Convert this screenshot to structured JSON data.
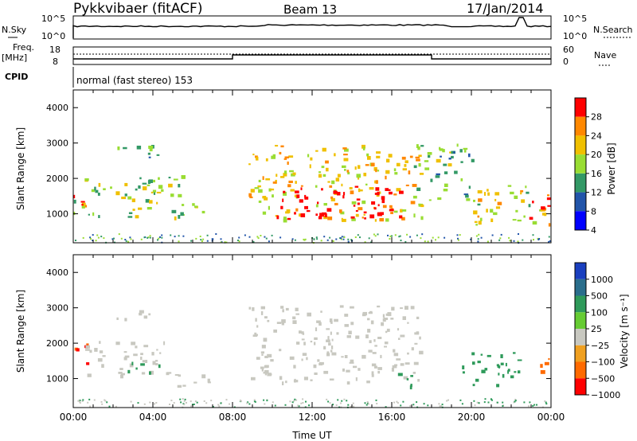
{
  "header": {
    "radar_title": "Pykkvibaer (fitACF)",
    "beam": "Beam 13",
    "date": "17/Jan/2014"
  },
  "top_panels": {
    "nsky_label": "N.Sky",
    "nsky_ticks": [
      "10^5",
      "10^0"
    ],
    "nsearch_label": "N.Search",
    "freq_label": "Freq.",
    "freq_unit": "[MHz]",
    "freq_ticks": [
      "18",
      "8"
    ],
    "nave_label": "Nave",
    "nave_ticks": [
      "60",
      "0"
    ],
    "cpid_label": "CPID",
    "cpid_text": "normal (fast stereo) 153"
  },
  "chart_data": [
    {
      "type": "heatmap",
      "name": "power",
      "ylabel": "Slant Range [km]",
      "ylim": [
        180,
        4500
      ],
      "yticks": [
        1000,
        2000,
        3000,
        4000
      ],
      "xlim": [
        0,
        24
      ],
      "colorbar": {
        "label": "Power [dB]",
        "ticks": [
          "28",
          "24",
          "20",
          "16",
          "12",
          "8",
          "4"
        ],
        "colors": [
          "#ff0000",
          "#ff8800",
          "#f0c000",
          "#99dd33",
          "#339966",
          "#2255aa",
          "#0000ff"
        ]
      },
      "echo_regions": [
        {
          "t0": 0.0,
          "t1": 5.5,
          "r0": 900,
          "r1": 2100,
          "value": 14
        },
        {
          "t0": 0.0,
          "t1": 1.2,
          "r0": 1200,
          "r1": 1600,
          "value": 26
        },
        {
          "t0": 1.8,
          "t1": 4.2,
          "r0": 2600,
          "r1": 3000,
          "value": 10
        },
        {
          "t0": 5.0,
          "t1": 6.8,
          "r0": 1000,
          "r1": 1400,
          "value": 12
        },
        {
          "t0": 8.8,
          "t1": 17.5,
          "r0": 850,
          "r1": 3000,
          "value": 18
        },
        {
          "t0": 10.0,
          "t1": 16.5,
          "r0": 850,
          "r1": 1800,
          "value": 28
        },
        {
          "t0": 17.0,
          "t1": 20.0,
          "r0": 1400,
          "r1": 3000,
          "value": 12
        },
        {
          "t0": 20.0,
          "t1": 24.0,
          "r0": 700,
          "r1": 1900,
          "value": 16
        },
        {
          "t0": 22.8,
          "t1": 24.0,
          "r0": 900,
          "r1": 1500,
          "value": 27
        }
      ]
    },
    {
      "type": "heatmap",
      "name": "velocity",
      "ylabel": "Slant Range [km]",
      "ylim": [
        180,
        4500
      ],
      "yticks": [
        1000,
        2000,
        3000,
        4000
      ],
      "xlim": [
        0,
        24
      ],
      "xlabel": "Time UT",
      "xticks": [
        "00:00",
        "04:00",
        "08:00",
        "12:00",
        "16:00",
        "20:00",
        "00:00"
      ],
      "colorbar": {
        "label": "Velocity [m s⁻¹]",
        "ticks": [
          "1000",
          "500",
          "100",
          "25",
          "−25",
          "−100",
          "−500",
          "−1000"
        ],
        "colors": [
          "#1a3fbf",
          "#2a6e8c",
          "#2e9a5a",
          "#66cc33",
          "#c8c8c0",
          "#f0a020",
          "#ff6a00",
          "#ff0000"
        ]
      },
      "echo_regions": [
        {
          "t0": 0.0,
          "t1": 0.8,
          "r0": 1300,
          "r1": 2200,
          "value": -300
        },
        {
          "t0": 0.6,
          "t1": 4.8,
          "r0": 1100,
          "r1": 2100,
          "value": 0
        },
        {
          "t0": 2.5,
          "t1": 4.6,
          "r0": 1200,
          "r1": 1500,
          "value": 120
        },
        {
          "t0": 1.8,
          "t1": 4.0,
          "r0": 2700,
          "r1": 3000,
          "value": 0
        },
        {
          "t0": 5.0,
          "t1": 6.8,
          "r0": 800,
          "r1": 1300,
          "value": 0
        },
        {
          "t0": 8.8,
          "t1": 17.5,
          "r0": 900,
          "r1": 3100,
          "value": 0
        },
        {
          "t0": 16.0,
          "t1": 17.0,
          "r0": 800,
          "r1": 1300,
          "value": 100
        },
        {
          "t0": 19.5,
          "t1": 22.5,
          "r0": 800,
          "r1": 1800,
          "value": 250
        },
        {
          "t0": 23.3,
          "t1": 24.0,
          "r0": 1200,
          "r1": 1800,
          "value": -200
        }
      ]
    }
  ]
}
